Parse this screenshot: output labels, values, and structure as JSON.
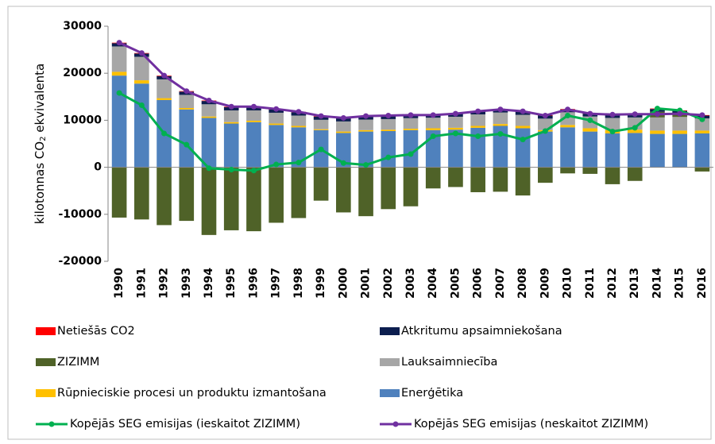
{
  "chart_data": {
    "type": "stacked-bar-line",
    "y_label": {
      "before": "kilotonnas CO",
      "subscript": "2",
      "after": " ekvivalenta"
    },
    "categories": [
      "1990",
      "1991",
      "1992",
      "1993",
      "1994",
      "1995",
      "1996",
      "1997",
      "1998",
      "1999",
      "2000",
      "2001",
      "2002",
      "2003",
      "2004",
      "2005",
      "2006",
      "2007",
      "2008",
      "2009",
      "2010",
      "2011",
      "2012",
      "2013",
      "2014",
      "2015",
      "2016"
    ],
    "ylim": [
      -20000,
      30000
    ],
    "yticks": [
      -20000,
      -10000,
      0,
      10000,
      20000,
      30000
    ],
    "series": [
      {
        "name": "Netiešās CO2",
        "kind": "bar",
        "color": "#ff0000",
        "values": [
          100,
          100,
          100,
          100,
          100,
          100,
          100,
          100,
          100,
          100,
          100,
          100,
          100,
          100,
          100,
          100,
          100,
          100,
          100,
          100,
          100,
          100,
          100,
          100,
          100,
          100,
          100
        ]
      },
      {
        "name": "Atkritumu apsaimniekošana",
        "kind": "bar",
        "color": "#0c1e4f",
        "values": [
          700,
          700,
          700,
          700,
          700,
          700,
          700,
          700,
          700,
          700,
          650,
          650,
          650,
          650,
          650,
          650,
          650,
          650,
          650,
          650,
          600,
          600,
          600,
          600,
          600,
          600,
          600
        ]
      },
      {
        "name": "ZIZIMM",
        "kind": "bar",
        "color": "#4f6228",
        "values": [
          -10700,
          -11100,
          -12300,
          -11400,
          -14400,
          -13400,
          -13600,
          -11800,
          -10800,
          -7100,
          -9600,
          -10400,
          -8900,
          -8300,
          -4500,
          -4200,
          -5300,
          -5200,
          -6000,
          -3300,
          -1300,
          -1400,
          -3600,
          -2900,
          1200,
          700,
          -900
        ]
      },
      {
        "name": "Lauksaimniecība",
        "kind": "bar",
        "color": "#a6a6a6",
        "values": [
          5400,
          5000,
          4000,
          2800,
          2600,
          2500,
          2200,
          2300,
          2200,
          2000,
          2150,
          2250,
          2250,
          2250,
          2250,
          2350,
          2450,
          2450,
          2350,
          2450,
          2700,
          2500,
          2600,
          2600,
          2800,
          2900,
          2600
        ]
      },
      {
        "name": "Rūpnieciskie procesi un produktu izmantošana",
        "kind": "bar",
        "color": "#ffc000",
        "values": [
          800,
          700,
          400,
          300,
          300,
          300,
          300,
          300,
          300,
          200,
          300,
          300,
          300,
          300,
          400,
          400,
          400,
          400,
          500,
          300,
          500,
          700,
          700,
          700,
          700,
          700,
          600
        ]
      },
      {
        "name": "Enerģētika",
        "kind": "bar",
        "color": "#4f81bd",
        "values": [
          19500,
          17800,
          14300,
          12300,
          10500,
          9300,
          9600,
          9000,
          8500,
          7900,
          7300,
          7600,
          7700,
          7900,
          7900,
          8000,
          8400,
          8800,
          8300,
          7600,
          8500,
          7600,
          7200,
          7300,
          7100,
          7100,
          7200
        ]
      },
      {
        "name": "Kopējās SEG emisijas (ieskaitot ZIZIMM)",
        "kind": "line",
        "color": "#00b050",
        "values": [
          15800,
          13200,
          7200,
          4800,
          -200,
          -500,
          -700,
          600,
          1000,
          3800,
          900,
          500,
          2100,
          2800,
          6600,
          7200,
          6600,
          7100,
          5900,
          7700,
          11000,
          10000,
          7600,
          8400,
          12500,
          12100,
          10200
        ]
      },
      {
        "name": "Kopējās SEG emisijas (neskaitot ZIZIMM)",
        "kind": "line",
        "color": "#7030a0",
        "values": [
          26500,
          24300,
          19500,
          16200,
          14200,
          12900,
          12900,
          12400,
          11800,
          10900,
          10500,
          10900,
          11000,
          11100,
          11100,
          11400,
          11900,
          12300,
          11900,
          11000,
          12300,
          11400,
          11200,
          11300,
          11300,
          11400,
          11100
        ]
      }
    ]
  }
}
